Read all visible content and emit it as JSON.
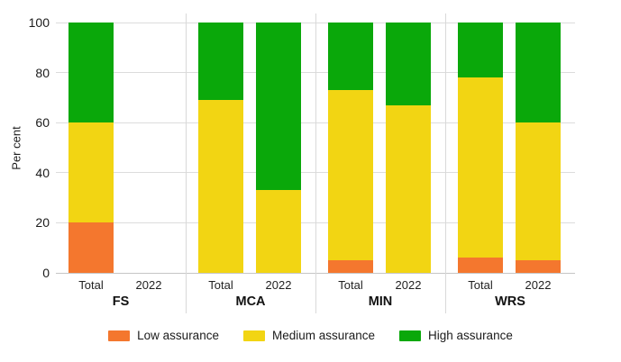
{
  "chart_data": {
    "type": "bar",
    "stacked": true,
    "title": "",
    "xlabel": "",
    "ylabel": "Per cent",
    "ylim": [
      0,
      100
    ],
    "yticks": [
      0,
      20,
      40,
      60,
      80,
      100
    ],
    "grid": true,
    "legend_position": "bottom",
    "series": [
      {
        "name": "Low assurance",
        "key": "low-assurance",
        "color": "#F4772E"
      },
      {
        "name": "Medium assurance",
        "key": "medium-assurance",
        "color": "#F2D513"
      },
      {
        "name": "High assurance",
        "key": "high-assurance",
        "color": "#0AA80A"
      }
    ],
    "groups": [
      {
        "label": "FS",
        "bars": [
          {
            "label": "Total",
            "values": [
              20,
              40,
              40
            ]
          },
          {
            "label": "2022",
            "values": [
              0,
              0,
              0
            ]
          }
        ]
      },
      {
        "label": "MCA",
        "bars": [
          {
            "label": "Total",
            "values": [
              0,
              69,
              31
            ]
          },
          {
            "label": "2022",
            "values": [
              0,
              33,
              67
            ]
          }
        ]
      },
      {
        "label": "MIN",
        "bars": [
          {
            "label": "Total",
            "values": [
              5,
              68,
              27
            ]
          },
          {
            "label": "2022",
            "values": [
              0,
              67,
              33
            ]
          }
        ]
      },
      {
        "label": "WRS",
        "bars": [
          {
            "label": "Total",
            "values": [
              6,
              72,
              22
            ]
          },
          {
            "label": "2022",
            "values": [
              5,
              55,
              40
            ]
          }
        ]
      }
    ]
  }
}
